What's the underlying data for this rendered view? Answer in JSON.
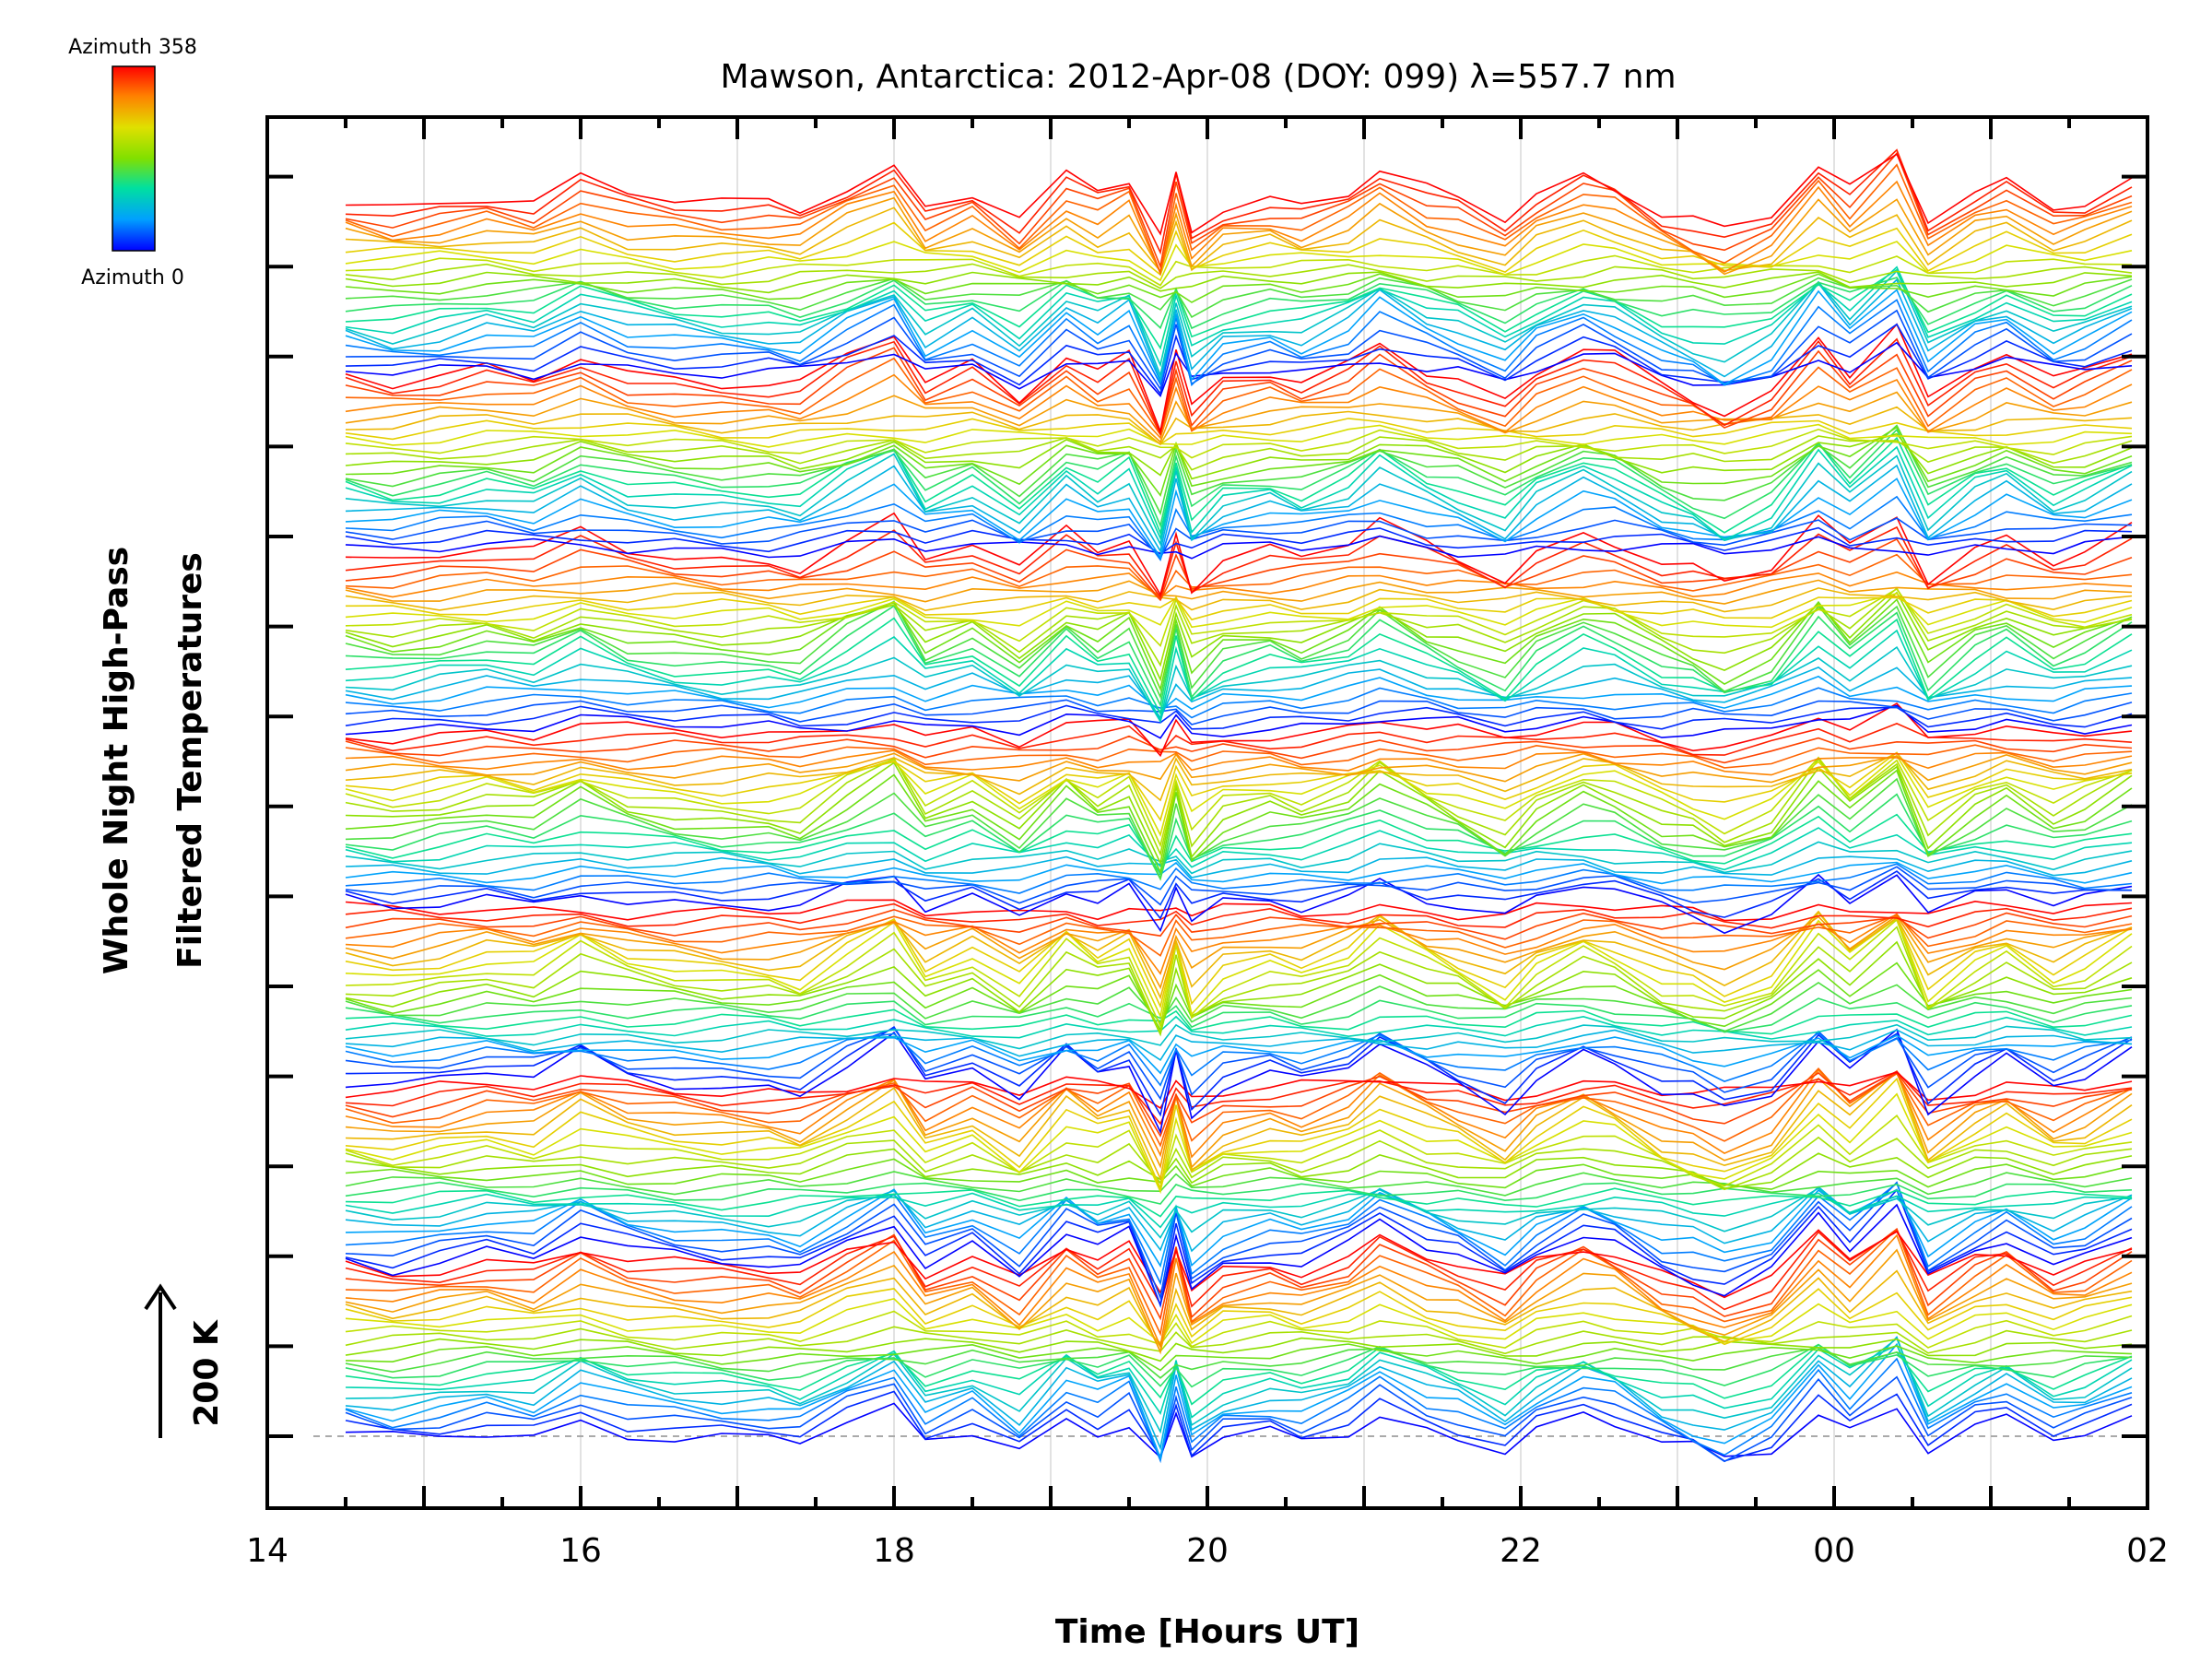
{
  "chart_data": {
    "type": "line",
    "title": "Mawson, Antarctica: 2012-Apr-08 (DOY: 099) λ=557.7 nm",
    "xlabel": "Time [Hours UT]",
    "ylabel_line1": "Whole Night High-Pass",
    "ylabel_line2": "Filtered Temperatures",
    "scale_label": "200 K",
    "colorbar": {
      "top_label": "Azimuth  358",
      "bottom_label": "Azimuth  0",
      "colormap": "rainbow",
      "colors": [
        "#0000ff",
        "#00a0ff",
        "#00e0a0",
        "#80e000",
        "#e0e000",
        "#ff8000",
        "#ff0000"
      ]
    },
    "x_ticks": [
      {
        "hour": 14,
        "label": "14"
      },
      {
        "hour": 16,
        "label": "16"
      },
      {
        "hour": 18,
        "label": "18"
      },
      {
        "hour": 20,
        "label": "20"
      },
      {
        "hour": 22,
        "label": "22"
      },
      {
        "hour": 24,
        "label": "00"
      },
      {
        "hour": 26,
        "label": "02"
      }
    ],
    "xlim": [
      14,
      26
    ],
    "grid": "vertical",
    "reference_line": "dashed gray at baseline",
    "groups": 7,
    "traces_per_group": 24,
    "azimuth_range": [
      0,
      358
    ],
    "time": [
      14.5,
      14.8,
      15.1,
      15.4,
      15.7,
      16.0,
      16.3,
      16.6,
      16.9,
      17.2,
      17.4,
      17.7,
      18.0,
      18.2,
      18.5,
      18.8,
      19.1,
      19.3,
      19.5,
      19.7,
      19.8,
      19.9,
      20.1,
      20.4,
      20.6,
      20.9,
      21.1,
      21.4,
      21.6,
      21.9,
      22.1,
      22.4,
      22.6,
      22.9,
      23.1,
      23.3,
      23.6,
      23.9,
      24.1,
      24.4,
      24.6,
      24.9,
      25.1,
      25.4,
      25.6,
      25.9
    ],
    "anomaly_pattern_K": [
      0,
      -8,
      0,
      10,
      2,
      28,
      8,
      0,
      -5,
      -6,
      -10,
      20,
      45,
      -5,
      15,
      -20,
      30,
      10,
      25,
      -50,
      30,
      -35,
      -5,
      5,
      -3,
      15,
      40,
      12,
      0,
      -25,
      5,
      30,
      20,
      -10,
      -20,
      -35,
      -15,
      45,
      10,
      55,
      -25,
      10,
      25,
      -5,
      5,
      30
    ]
  }
}
